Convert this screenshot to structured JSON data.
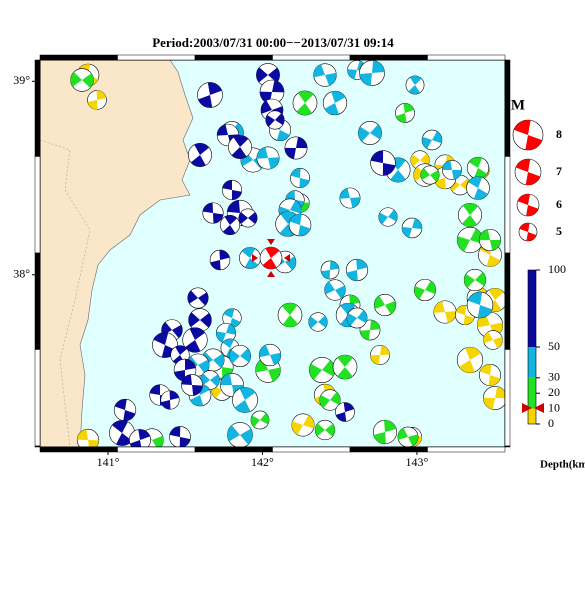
{
  "chart_data": {
    "type": "map",
    "title": "Period:2003/07/31 00:00−−2013/07/31 09:14",
    "xlim": [
      140.56,
      143.57
    ],
    "ylim": [
      37.11,
      39.11
    ],
    "xticks": [
      {
        "value": 141,
        "label": "141°"
      },
      {
        "value": 142,
        "label": "142°"
      },
      {
        "value": 143,
        "label": "143°"
      }
    ],
    "yticks": [
      {
        "value": 38,
        "label": "38°"
      },
      {
        "value": 39,
        "label": "39°"
      }
    ],
    "magnitude_legend": {
      "title": "M",
      "labels": [
        "8",
        "7",
        "6",
        "5"
      ]
    },
    "depth_scale": {
      "label": "Depth(km)",
      "lim": [
        0,
        100
      ],
      "ticks": [
        0,
        10,
        20,
        30,
        50,
        100
      ]
    }
  }
}
